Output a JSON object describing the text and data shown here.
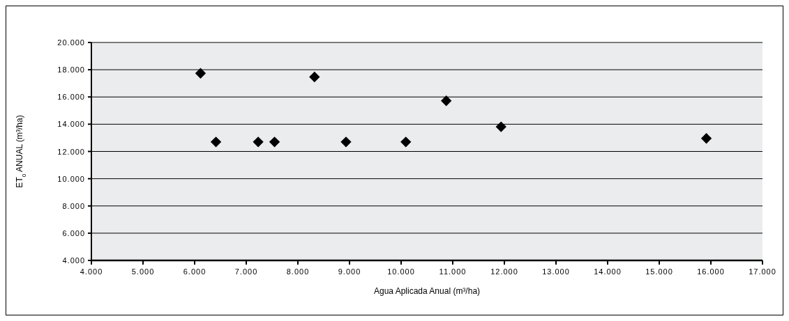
{
  "chart_data": {
    "type": "scatter",
    "xlabel": "Agua Aplicada Anual (m³/ha)",
    "ylabel": "ET$_{o}$ ANUAL (m³/ha)",
    "x": [
      6114,
      6413,
      7231,
      7548,
      8322,
      8932,
      10091,
      10874,
      11936,
      15913
    ],
    "series": [
      {
        "color": "#000000",
        "values": [
          17740,
          12700,
          12700,
          12700,
          17470,
          12700,
          12700,
          15720,
          13810,
          12960
        ]
      }
    ],
    "xlim": [
      4000,
      17000
    ],
    "ylim": [
      4000,
      20000
    ],
    "xticks": [
      {
        "value": 4000,
        "label": "4.000"
      },
      {
        "value": 5000,
        "label": "5.000"
      },
      {
        "value": 6000,
        "label": "6.000"
      },
      {
        "value": 7000,
        "label": "7.000"
      },
      {
        "value": 8000,
        "label": "8.000"
      },
      {
        "value": 9000,
        "label": "9.000"
      },
      {
        "value": 10000,
        "label": "10.000"
      },
      {
        "value": 11000,
        "label": "11.000"
      },
      {
        "value": 12000,
        "label": "12.000"
      },
      {
        "value": 13000,
        "label": "13.000"
      },
      {
        "value": 14000,
        "label": "14.000"
      },
      {
        "value": 15000,
        "label": "15.000"
      },
      {
        "value": 16000,
        "label": "16.000"
      },
      {
        "value": 17000,
        "label": "17.000"
      }
    ],
    "yticks": [
      {
        "value": 4000,
        "label": "4.000"
      },
      {
        "value": 6000,
        "label": "6.000"
      },
      {
        "value": 8000,
        "label": "8.000"
      },
      {
        "value": 10000,
        "label": "10.000"
      },
      {
        "value": 12000,
        "label": "12.000"
      },
      {
        "value": 14000,
        "label": "14.000"
      },
      {
        "value": 16000,
        "label": "16.000"
      },
      {
        "value": 18000,
        "label": "18.000"
      },
      {
        "value": 20000,
        "label": "20.000"
      }
    ],
    "grid": "y",
    "marker": "diamond"
  }
}
